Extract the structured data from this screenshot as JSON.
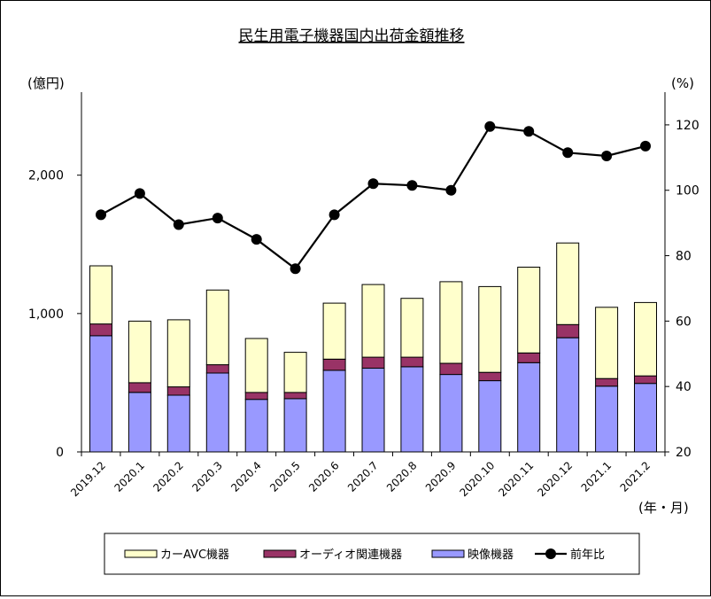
{
  "chart_data": {
    "type": "bar",
    "title": "民生用電子機器国内出荷金額推移",
    "left_axis_unit": "(億円)",
    "right_axis_unit": "(%)",
    "x_axis_unit": "(年・月)",
    "categories": [
      "2019.12",
      "2020.1",
      "2020.2",
      "2020.3",
      "2020.4",
      "2020.5",
      "2020.6",
      "2020.7",
      "2020.8",
      "2020.9",
      "2020.10",
      "2020.11",
      "2020.12",
      "2021.1",
      "2021.2"
    ],
    "ylim_left": [
      0,
      2600
    ],
    "yticks_left": [
      0,
      1000,
      2000
    ],
    "ytick_labels_left": [
      "0",
      "1,000",
      "2,000"
    ],
    "ylim_right": [
      20,
      130
    ],
    "yticks_right": [
      20,
      40,
      60,
      80,
      100,
      120
    ],
    "stacked": true,
    "grid": false,
    "legend_position": "bottom",
    "series": [
      {
        "name": "映像機器",
        "chart": "bar",
        "axis": "left",
        "color": "#9999ff",
        "values": [
          840,
          430,
          410,
          570,
          380,
          385,
          590,
          605,
          615,
          560,
          515,
          645,
          825,
          475,
          495
        ]
      },
      {
        "name": "オーディオ関連機器",
        "chart": "bar",
        "axis": "left",
        "color": "#993366",
        "values": [
          85,
          70,
          60,
          60,
          50,
          45,
          80,
          80,
          70,
          80,
          60,
          70,
          95,
          55,
          55
        ]
      },
      {
        "name": "カーAVC機器",
        "chart": "bar",
        "axis": "left",
        "color": "#ffffcc",
        "values": [
          420,
          445,
          485,
          540,
          390,
          290,
          405,
          525,
          425,
          590,
          620,
          620,
          590,
          515,
          530
        ]
      },
      {
        "name": "前年比",
        "chart": "line",
        "axis": "right",
        "color": "#000000",
        "values": [
          92.5,
          99,
          89.5,
          91.5,
          85,
          76,
          92.5,
          102,
          101.5,
          100,
          119.5,
          118,
          111.5,
          110.5,
          113.5
        ]
      }
    ],
    "legend_order": [
      "カーAVC機器",
      "オーディオ関連機器",
      "映像機器",
      "前年比"
    ]
  }
}
